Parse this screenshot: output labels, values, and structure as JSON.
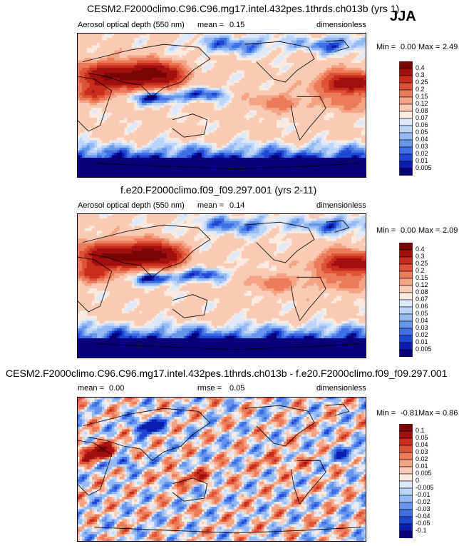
{
  "season": "JJA",
  "panels": [
    {
      "title": "CESM2.F2000climo.C96.C96.mg17.intel.432pes.1thrds.ch013b (yrs 1)",
      "variable": "Aerosol optical depth (550 nm)",
      "stat_label": "mean =",
      "stat_value": "0.15",
      "units": "dimensionless",
      "min_label": "Min =",
      "min_value": "0.00",
      "max_label": "Max =",
      "max_value": "2.49",
      "levels": [
        "0.4",
        "0.3",
        "0.25",
        "0.2",
        "0.15",
        "0.12",
        "0.08",
        "0.07",
        "0.06",
        "0.05",
        "0.04",
        "0.03",
        "0.02",
        "0.01",
        "0.005"
      ]
    },
    {
      "title": "f.e20.F2000climo.f09_f09.297.001 (yrs 2-11)",
      "variable": "Aerosol optical depth (550 nm)",
      "stat_label": "mean =",
      "stat_value": "0.14",
      "units": "dimensionless",
      "min_label": "Min =",
      "min_value": "0.00",
      "max_label": "Max =",
      "max_value": "2.09",
      "levels": [
        "0.4",
        "0.3",
        "0.25",
        "0.2",
        "0.15",
        "0.12",
        "0.08",
        "0.07",
        "0.06",
        "0.05",
        "0.04",
        "0.03",
        "0.02",
        "0.01",
        "0.005"
      ]
    },
    {
      "title": "CESM2.F2000climo.C96.C96.mg17.intel.432pes.1thrds.ch013b - f.e20.F2000climo.f09_f09.297.001",
      "variable": "",
      "mean_label": "mean =",
      "mean_value": "0.00",
      "stat_label": "rmse =",
      "stat_value": "0.05",
      "units": "dimensionless",
      "min_label": "Min =",
      "min_value": "-0.81",
      "max_label": "Max =",
      "max_value": "0.86",
      "levels": [
        "0.1",
        "0.05",
        "0.04",
        "0.03",
        "0.02",
        "0.01",
        "0.005",
        "0",
        "-0.005",
        "-0.01",
        "-0.02",
        "-0.03",
        "-0.04",
        "-0.05",
        "-0.1"
      ]
    }
  ],
  "chart_data": [
    {
      "type": "heatmap",
      "title": "CESM2.F2000climo.C96.C96.mg17.intel.432pes.1thrds.ch013b (yrs 1)",
      "variable": "Aerosol optical depth (550 nm)",
      "units": "dimensionless",
      "mean": 0.15,
      "min": 0.0,
      "max": 2.49,
      "contour_levels": [
        0.005,
        0.01,
        0.02,
        0.03,
        0.04,
        0.05,
        0.06,
        0.07,
        0.08,
        0.12,
        0.15,
        0.2,
        0.25,
        0.3,
        0.4
      ],
      "colors": [
        "#08007a",
        "#0b1cb0",
        "#1f47d4",
        "#3f6fe4",
        "#6696ec",
        "#94b9f3",
        "#bcd4f7",
        "#dde9fa",
        "#fbeae0",
        "#f9cbb4",
        "#f4a484",
        "#ec7b59",
        "#de5236",
        "#c72c1c",
        "#a20f0f",
        "#7a0505"
      ]
    },
    {
      "type": "heatmap",
      "title": "f.e20.F2000climo.f09_f09.297.001 (yrs 2-11)",
      "variable": "Aerosol optical depth (550 nm)",
      "units": "dimensionless",
      "mean": 0.14,
      "min": 0.0,
      "max": 2.09,
      "contour_levels": [
        0.005,
        0.01,
        0.02,
        0.03,
        0.04,
        0.05,
        0.06,
        0.07,
        0.08,
        0.12,
        0.15,
        0.2,
        0.25,
        0.3,
        0.4
      ],
      "colors": [
        "#08007a",
        "#0b1cb0",
        "#1f47d4",
        "#3f6fe4",
        "#6696ec",
        "#94b9f3",
        "#bcd4f7",
        "#dde9fa",
        "#fbeae0",
        "#f9cbb4",
        "#f4a484",
        "#ec7b59",
        "#de5236",
        "#c72c1c",
        "#a20f0f",
        "#7a0505"
      ]
    },
    {
      "type": "heatmap",
      "title": "CESM2.F2000climo.C96.C96.mg17.intel.432pes.1thrds.ch013b - f.e20.F2000climo.f09_f09.297.001",
      "units": "dimensionless",
      "mean": 0.0,
      "rmse": 0.05,
      "min": -0.81,
      "max": 0.86,
      "contour_levels": [
        -0.1,
        -0.05,
        -0.04,
        -0.03,
        -0.02,
        -0.01,
        -0.005,
        0,
        0.005,
        0.01,
        0.02,
        0.03,
        0.04,
        0.05,
        0.1
      ],
      "colors": [
        "#08007a",
        "#0b1cb0",
        "#1f47d4",
        "#3f6fe4",
        "#6696ec",
        "#94b9f3",
        "#bcd4f7",
        "#dde9fa",
        "#fbeae0",
        "#f9cbb4",
        "#f4a484",
        "#ec7b59",
        "#de5236",
        "#c72c1c",
        "#a20f0f",
        "#7a0505"
      ]
    }
  ]
}
